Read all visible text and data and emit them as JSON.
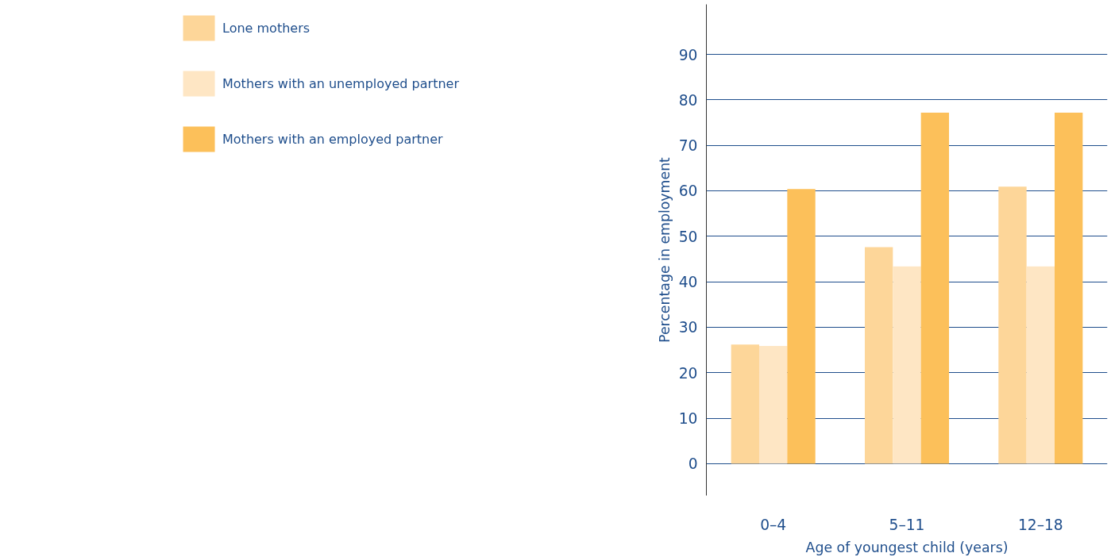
{
  "chart_data": {
    "type": "bar",
    "xlabel": "Age of youngest child (years)",
    "ylabel": "Percentage in employment",
    "categories": [
      "0–4",
      "5–11",
      "12–18"
    ],
    "series": [
      {
        "name": "Lone mothers",
        "color": "#fdd699",
        "values": [
          26.2,
          47.6,
          60.9
        ]
      },
      {
        "name": "Mothers with an unemployed partner",
        "color": "#fee6c4",
        "values": [
          25.9,
          43.4,
          43.4
        ]
      },
      {
        "name": "Mothers with an employed partner",
        "color": "#fcc05a",
        "values": [
          60.4,
          77.2,
          77.2
        ]
      }
    ],
    "ylim": [
      -7,
      101
    ],
    "yticks": [
      0,
      10,
      20,
      30,
      40,
      50,
      60,
      70,
      80,
      90
    ],
    "grid": "y",
    "legend": "left"
  }
}
